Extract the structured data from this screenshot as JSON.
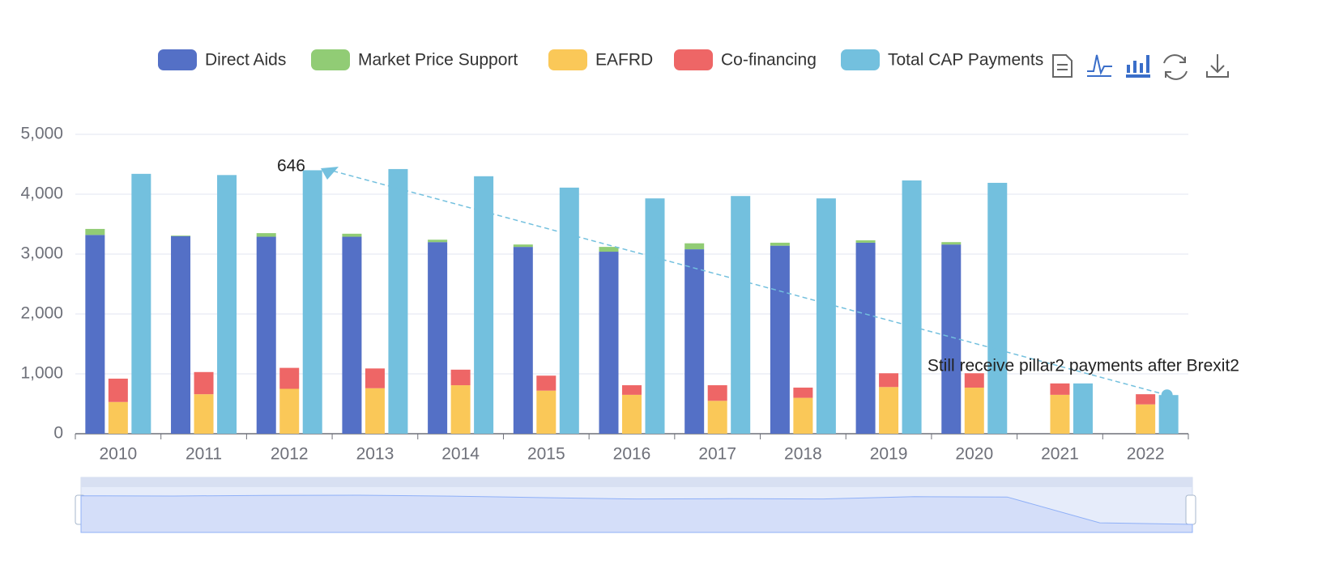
{
  "chart_data": {
    "type": "bar",
    "categories": [
      "2010",
      "2011",
      "2012",
      "2013",
      "2014",
      "2015",
      "2016",
      "2017",
      "2018",
      "2019",
      "2020",
      "2021",
      "2022"
    ],
    "series": [
      {
        "name": "Direct Aids",
        "color": "#5470c6",
        "stack": "a",
        "values": [
          3320,
          3300,
          3290,
          3290,
          3200,
          3120,
          3040,
          3080,
          3140,
          3190,
          3160,
          null,
          null
        ]
      },
      {
        "name": "Market Price Support",
        "color": "#91cc75",
        "stack": "a",
        "values": [
          100,
          10,
          60,
          50,
          40,
          40,
          80,
          100,
          50,
          40,
          40,
          null,
          null
        ]
      },
      {
        "name": "EAFRD",
        "color": "#fac858",
        "stack": "b",
        "values": [
          530,
          660,
          750,
          760,
          810,
          720,
          650,
          550,
          600,
          780,
          770,
          650,
          490
        ]
      },
      {
        "name": "Co-financing",
        "color": "#ee6666",
        "stack": "b",
        "values": [
          390,
          370,
          350,
          330,
          260,
          250,
          160,
          260,
          170,
          230,
          240,
          190,
          170
        ]
      },
      {
        "name": "Total CAP Payments",
        "color": "#73c0de",
        "stack": "c",
        "values": [
          4340,
          4320,
          4400,
          4420,
          4300,
          4110,
          3930,
          3970,
          3930,
          4230,
          4190,
          840,
          646
        ]
      }
    ],
    "ylim": [
      0,
      5000
    ],
    "yticks": [
      0,
      {
        "value": 1000,
        "label": "1,000"
      },
      {
        "value": 2000,
        "label": "2,000"
      },
      {
        "value": 3000,
        "label": "3,000"
      },
      {
        "value": 4000,
        "label": "4,000"
      },
      {
        "value": 5000,
        "label": "5,000"
      }
    ],
    "grid": true,
    "annotations": [
      "646",
      "Still receive pillar2 payments after Brexit2"
    ]
  }
}
